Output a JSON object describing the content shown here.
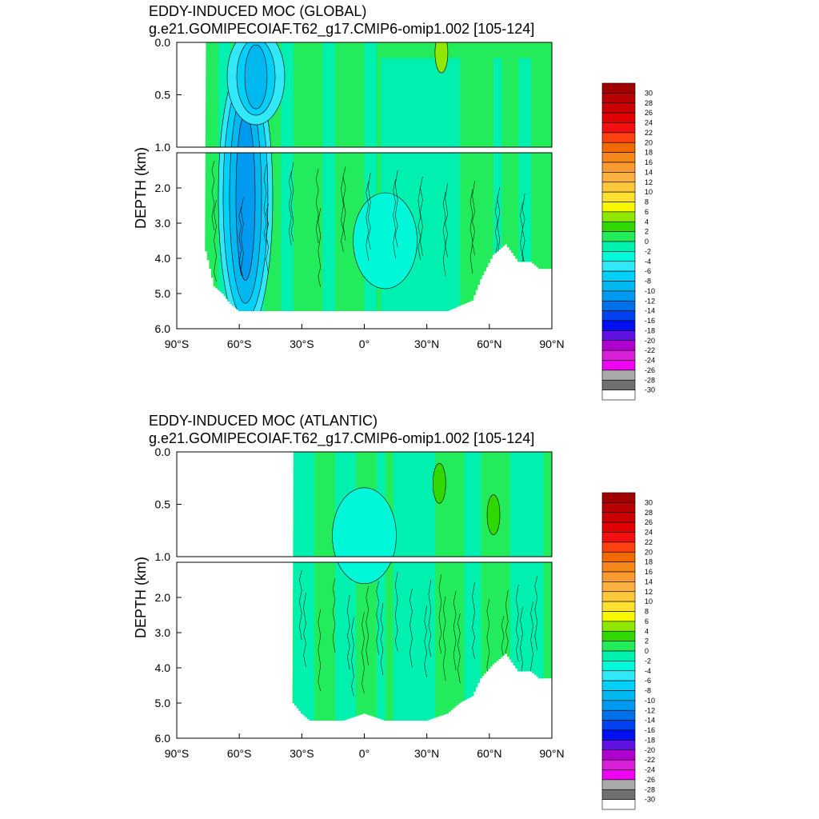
{
  "chart_data": [
    {
      "type": "heatmap",
      "title": "EDDY-INDUCED MOC (GLOBAL)",
      "subtitle": "g.e21.GOMIPECOIAF.T62_g17.CMIP6-omip1.002 [105-124]",
      "ylabel": "DEPTH (km)",
      "upper_yticks": [
        "0.0",
        "0.5",
        "1.0"
      ],
      "lower_yticks": [
        "2.0",
        "3.0",
        "4.0",
        "5.0",
        "6.0"
      ],
      "xticks": [
        "90°S",
        "60°S",
        "30°S",
        "0°",
        "30°N",
        "60°N",
        "90°N"
      ],
      "xlim": [
        -90,
        90
      ],
      "ylim_upper_km": [
        0,
        1
      ],
      "ylim_lower_km": [
        1,
        6
      ],
      "ocean_start_lat": -76,
      "bottom_depth_km": [
        [
          -76,
          3.8
        ],
        [
          -72,
          4.8
        ],
        [
          -68,
          5.0
        ],
        [
          -64,
          5.3
        ],
        [
          -60,
          5.5
        ],
        [
          -50,
          5.5
        ],
        [
          -40,
          5.5
        ],
        [
          -20,
          5.5
        ],
        [
          0,
          5.5
        ],
        [
          20,
          5.5
        ],
        [
          40,
          5.5
        ],
        [
          52,
          5.2
        ],
        [
          56,
          4.6
        ],
        [
          62,
          3.9
        ],
        [
          68,
          3.6
        ],
        [
          74,
          4.1
        ],
        [
          80,
          4.1
        ],
        [
          84,
          4.3
        ],
        [
          90,
          4.3
        ]
      ],
      "features": [
        {
          "lat": -57,
          "depth_km": 1.8,
          "value": -10
        },
        {
          "lat": -52,
          "depth_km": 0.1,
          "value": -8
        },
        {
          "lat": 37,
          "depth_km": 0.1,
          "value": 4
        },
        {
          "lat": 10,
          "depth_km": 3.5,
          "value": -2
        }
      ],
      "colorbar_labels": [
        "30",
        "28",
        "26",
        "24",
        "22",
        "20",
        "18",
        "16",
        "14",
        "12",
        "10",
        "8",
        "6",
        "4",
        "2",
        "0",
        "-2",
        "-4",
        "-6",
        "-8",
        "-10",
        "-12",
        "-14",
        "-16",
        "-18",
        "-20",
        "-22",
        "-24",
        "-26",
        "-28",
        "-30"
      ],
      "colorbar_colors": [
        "#a00000",
        "#b80000",
        "#cc0000",
        "#e00000",
        "#f01010",
        "#ff4010",
        "#f06a00",
        "#f5861c",
        "#fa9a30",
        "#fbb040",
        "#fcc83c",
        "#fde030",
        "#f8f800",
        "#90e800",
        "#30d800",
        "#22ec5c",
        "#00f0b0",
        "#00f8d8",
        "#30e8f8",
        "#00d0f8",
        "#00b8f0",
        "#009af0",
        "#0070e8",
        "#0040f0",
        "#0010f0",
        "#6010e0",
        "#b000d0",
        "#d820d8",
        "#f000f0",
        "#aaaaaa",
        "#707070",
        "#ffffff"
      ]
    },
    {
      "type": "heatmap",
      "title": "EDDY-INDUCED MOC (ATLANTIC)",
      "subtitle": "g.e21.GOMIPECOIAF.T62_g17.CMIP6-omip1.002 [105-124]",
      "ylabel": "DEPTH (km)",
      "upper_yticks": [
        "0.0",
        "0.5",
        "1.0"
      ],
      "lower_yticks": [
        "2.0",
        "3.0",
        "4.0",
        "5.0",
        "6.0"
      ],
      "xticks": [
        "90°S",
        "60°S",
        "30°S",
        "0°",
        "30°N",
        "60°N",
        "90°N"
      ],
      "xlim": [
        -90,
        90
      ],
      "ylim_upper_km": [
        0,
        1
      ],
      "ylim_lower_km": [
        1,
        6
      ],
      "ocean_start_lat": -34,
      "bottom_depth_km": [
        [
          -34,
          5.0
        ],
        [
          -30,
          5.3
        ],
        [
          -26,
          5.5
        ],
        [
          -10,
          5.5
        ],
        [
          0,
          5.3
        ],
        [
          10,
          5.5
        ],
        [
          30,
          5.5
        ],
        [
          40,
          5.3
        ],
        [
          46,
          5.0
        ],
        [
          52,
          4.8
        ],
        [
          56,
          4.3
        ],
        [
          62,
          3.9
        ],
        [
          68,
          3.6
        ],
        [
          74,
          4.1
        ],
        [
          80,
          4.1
        ],
        [
          84,
          4.3
        ],
        [
          90,
          4.3
        ]
      ],
      "features": [
        {
          "lat": 0,
          "depth_km": 0.8,
          "value": -2
        },
        {
          "lat": 36,
          "depth_km": 0.3,
          "value": 2
        },
        {
          "lat": 62,
          "depth_km": 0.6,
          "value": 2
        }
      ],
      "colorbar_labels": [
        "30",
        "28",
        "26",
        "24",
        "22",
        "20",
        "18",
        "16",
        "14",
        "12",
        "10",
        "8",
        "6",
        "4",
        "2",
        "0",
        "-2",
        "-4",
        "-6",
        "-8",
        "-10",
        "-12",
        "-14",
        "-16",
        "-18",
        "-20",
        "-22",
        "-24",
        "-26",
        "-28",
        "-30"
      ],
      "colorbar_colors": [
        "#a00000",
        "#b80000",
        "#cc0000",
        "#e00000",
        "#f01010",
        "#ff4010",
        "#f06a00",
        "#f5861c",
        "#fa9a30",
        "#fbb040",
        "#fcc83c",
        "#fde030",
        "#f8f800",
        "#90e800",
        "#30d800",
        "#22ec5c",
        "#00f0b0",
        "#00f8d8",
        "#30e8f8",
        "#00d0f8",
        "#00b8f0",
        "#009af0",
        "#0070e8",
        "#0040f0",
        "#0010f0",
        "#6010e0",
        "#b000d0",
        "#d820d8",
        "#f000f0",
        "#aaaaaa",
        "#707070",
        "#ffffff"
      ]
    }
  ]
}
